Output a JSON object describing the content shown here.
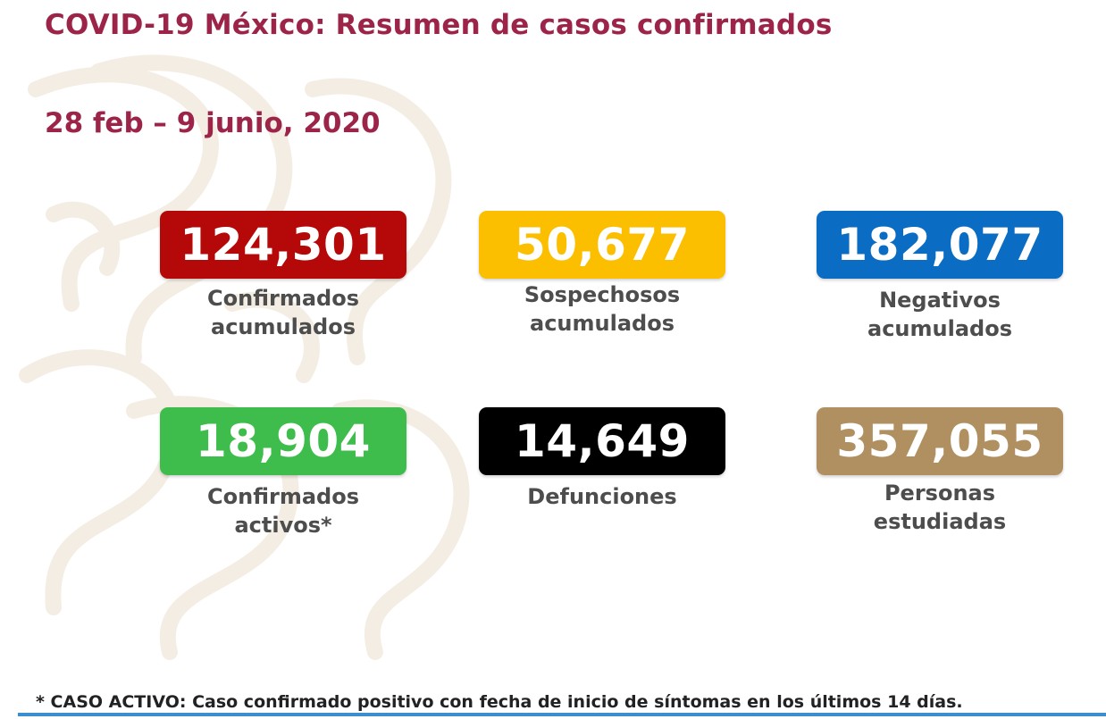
{
  "slide": {
    "title": "COVID-19 México: Resumen de casos confirmados",
    "date_range": "28 feb – 9 junio, 2020",
    "stats": [
      {
        "value": "124,301",
        "label": "Confirmados\nacumulados",
        "color": "#b50909"
      },
      {
        "value": "50,677",
        "label": "Sospechosos\nacumulados",
        "color": "#fcbf00"
      },
      {
        "value": "182,077",
        "label": "Negativos\nacumulados",
        "color": "#0a6cc2"
      },
      {
        "value": "18,904",
        "label": "Confirmados\nactivos*",
        "color": "#3ebd4c"
      },
      {
        "value": "14,649",
        "label": "Defunciones",
        "color": "#000000"
      },
      {
        "value": "357,055",
        "label": "Personas\nestudiadas",
        "color": "#b09060"
      }
    ],
    "footnote": "* CASO ACTIVO: Caso confirmado positivo con fecha de inicio de síntomas en los últimos 14 días.",
    "accent_color": "#9d2449",
    "rule_color": "#3b8fd0"
  }
}
